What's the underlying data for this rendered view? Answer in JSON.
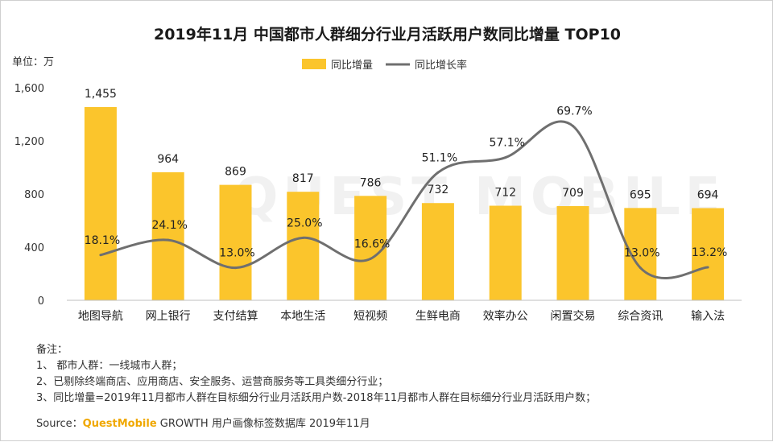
{
  "chart_data": {
    "type": "bar",
    "title": "2019年11月 中国都市人群细分行业月活跃用户数同比增量 TOP10",
    "unit_label": "单位：万",
    "categories": [
      "地图导航",
      "网上银行",
      "支付结算",
      "本地生活",
      "短视频",
      "生鲜电商",
      "效率办公",
      "闲置交易",
      "综合资讯",
      "输入法"
    ],
    "series": [
      {
        "name": "同比增量",
        "type": "bar",
        "color": "#FBC52C",
        "values": [
          1455,
          964,
          869,
          817,
          786,
          732,
          712,
          709,
          695,
          694
        ],
        "labels": [
          "1,455",
          "964",
          "869",
          "817",
          "786",
          "732",
          "712",
          "709",
          "695",
          "694"
        ]
      },
      {
        "name": "同比增长率",
        "type": "line",
        "color": "#6f6f6f",
        "values": [
          18.1,
          24.1,
          13.0,
          25.0,
          16.6,
          51.1,
          57.1,
          69.7,
          13.0,
          13.2
        ],
        "labels": [
          "18.1%",
          "24.1%",
          "13.0%",
          "25.0%",
          "16.6%",
          "51.1%",
          "57.1%",
          "69.7%",
          "13.0%",
          "13.2%"
        ]
      }
    ],
    "yticks": [
      "0",
      "400",
      "800",
      "1,200",
      "1,600"
    ],
    "ylim": [
      0,
      1600
    ],
    "legend_position": "top-center",
    "grid": false
  },
  "watermark": "QUEST MOBILE",
  "notes": {
    "heading": "备注：",
    "items": [
      "1、 都市人群：一线城市人群；",
      "2、已剔除终端商店、应用商店、安全服务、运营商服务等工具类细分行业；",
      "3、同比增量=2019年11月都市人群在目标细分行业月活跃用户数-2018年11月都市人群在目标细分行业月活跃用户数；"
    ]
  },
  "source": {
    "prefix": "Source：",
    "brand": "QuestMobile",
    "text": " GROWTH 用户画像标签数据库  2019年11月"
  }
}
